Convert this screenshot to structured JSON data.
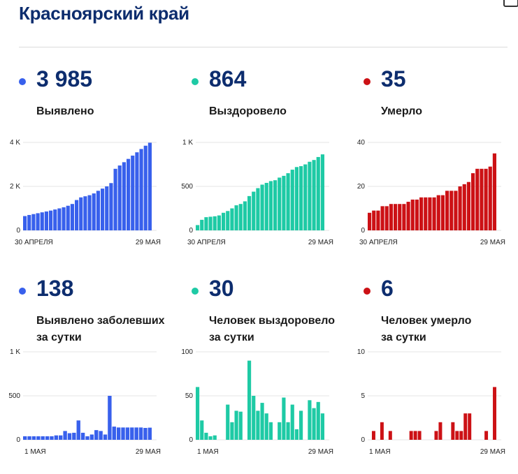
{
  "title": "Красноярский край",
  "colors": {
    "blue": "#3860ec",
    "teal": "#1ecaa5",
    "red": "#cc1115",
    "navy": "#0d2d6e"
  },
  "panels": [
    {
      "value": "3 985",
      "label_lines": [
        "Выявлено"
      ],
      "color": "#3860ec",
      "chart_data": {
        "type": "bar",
        "ylim": [
          0,
          4000
        ],
        "y_ticks": [
          {
            "v": 0,
            "t": "0"
          },
          {
            "v": 2000,
            "t": "2 K"
          },
          {
            "v": 4000,
            "t": "4 K"
          }
        ],
        "x_labels": [
          "30 АПРЕЛЯ",
          "29 МАЯ"
        ],
        "values": [
          650,
          700,
          740,
          780,
          820,
          860,
          900,
          950,
          1000,
          1050,
          1120,
          1200,
          1380,
          1500,
          1550,
          1600,
          1680,
          1800,
          1900,
          2000,
          2150,
          2800,
          2950,
          3100,
          3250,
          3400,
          3550,
          3700,
          3850,
          3985
        ]
      }
    },
    {
      "value": "864",
      "label_lines": [
        "Выздоровело"
      ],
      "color": "#1ecaa5",
      "chart_data": {
        "type": "bar",
        "ylim": [
          0,
          1000
        ],
        "y_ticks": [
          {
            "v": 0,
            "t": "0"
          },
          {
            "v": 500,
            "t": "500"
          },
          {
            "v": 1000,
            "t": "1 K"
          }
        ],
        "x_labels": [
          "30 АПРЕЛЯ",
          "29 МАЯ"
        ],
        "values": [
          60,
          120,
          150,
          155,
          160,
          170,
          200,
          220,
          250,
          285,
          300,
          330,
          390,
          440,
          480,
          520,
          540,
          560,
          570,
          600,
          620,
          650,
          690,
          720,
          730,
          750,
          780,
          800,
          834,
          864
        ]
      }
    },
    {
      "value": "35",
      "label_lines": [
        "Умерло"
      ],
      "color": "#cc1115",
      "chart_data": {
        "type": "bar",
        "ylim": [
          0,
          40
        ],
        "y_ticks": [
          {
            "v": 0,
            "t": "0"
          },
          {
            "v": 20,
            "t": "20"
          },
          {
            "v": 40,
            "t": "40"
          }
        ],
        "x_labels": [
          "30 АПРЕЛЯ",
          "29 МАЯ"
        ],
        "values": [
          8,
          9,
          9,
          11,
          11,
          12,
          12,
          12,
          12,
          13,
          14,
          14,
          15,
          15,
          15,
          15,
          16,
          16,
          18,
          18,
          18,
          20,
          21,
          22,
          26,
          28,
          28,
          28,
          29,
          35
        ]
      }
    },
    {
      "value": "138",
      "label_lines": [
        "Выявлено заболевших",
        "за сутки"
      ],
      "color": "#3860ec",
      "chart_data": {
        "type": "bar",
        "ylim": [
          0,
          1000
        ],
        "y_ticks": [
          {
            "v": 0,
            "t": "0"
          },
          {
            "v": 500,
            "t": "500"
          },
          {
            "v": 1000,
            "t": "1 K"
          }
        ],
        "x_labels": [
          "1 МАЯ",
          "29 МАЯ"
        ],
        "values": [
          40,
          40,
          40,
          40,
          40,
          40,
          40,
          50,
          50,
          100,
          75,
          80,
          220,
          80,
          40,
          60,
          110,
          100,
          60,
          500,
          150,
          140,
          140,
          140,
          140,
          140,
          140,
          135,
          138
        ]
      }
    },
    {
      "value": "30",
      "label_lines": [
        "Человек выздоровело",
        "за сутки"
      ],
      "color": "#1ecaa5",
      "chart_data": {
        "type": "bar",
        "ylim": [
          0,
          100
        ],
        "y_ticks": [
          {
            "v": 0,
            "t": "0"
          },
          {
            "v": 50,
            "t": "50"
          },
          {
            "v": 100,
            "t": "100"
          }
        ],
        "x_labels": [
          "1 МАЯ",
          "29 МАЯ"
        ],
        "values": [
          60,
          22,
          8,
          4,
          5,
          0,
          0,
          40,
          20,
          33,
          32,
          0,
          90,
          50,
          33,
          42,
          30,
          20,
          0,
          20,
          48,
          20,
          40,
          12,
          33,
          0,
          45,
          36,
          43,
          30
        ]
      }
    },
    {
      "value": "6",
      "label_lines": [
        "Человек умерло",
        "за сутки"
      ],
      "color": "#cc1115",
      "chart_data": {
        "type": "bar",
        "ylim": [
          0,
          10
        ],
        "y_ticks": [
          {
            "v": 0,
            "t": "0"
          },
          {
            "v": 5,
            "t": "5"
          },
          {
            "v": 10,
            "t": "10"
          }
        ],
        "x_labels": [
          "1 МАЯ",
          "29 МАЯ"
        ],
        "values": [
          0,
          1,
          0,
          2,
          0,
          1,
          0,
          0,
          0,
          0,
          1,
          1,
          1,
          0,
          0,
          0,
          1,
          2,
          0,
          0,
          2,
          1,
          1,
          3,
          3,
          0,
          0,
          0,
          1,
          0,
          6
        ]
      }
    }
  ]
}
